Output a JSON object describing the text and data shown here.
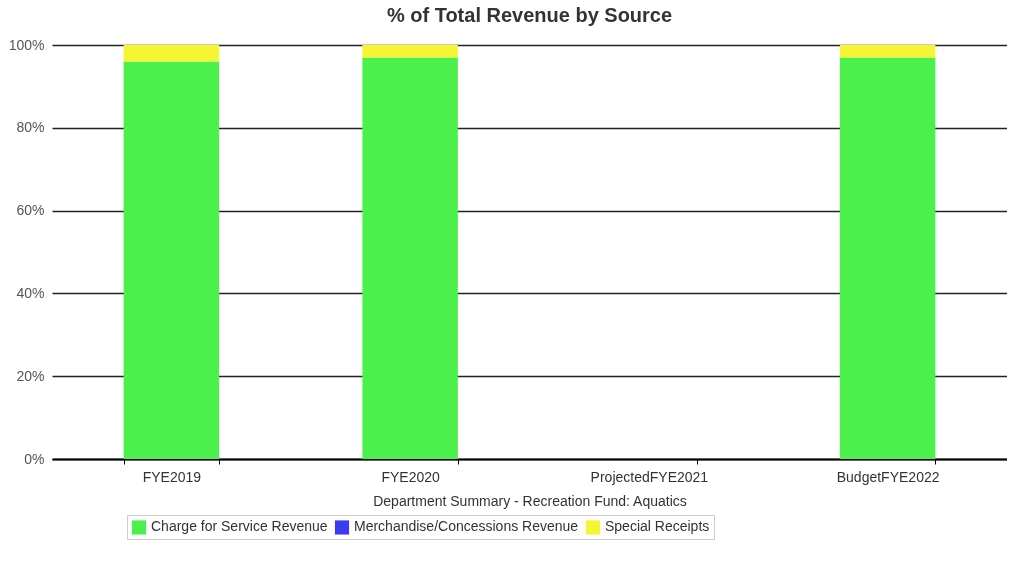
{
  "chart_data": {
    "type": "bar",
    "title": "% of Total Revenue by Source",
    "xlabel": "Department Summary - Recreation Fund: Aquatics",
    "categories": [
      "FYE2019",
      "FYE2020",
      "ProjectedFYE2021",
      "BudgetFYE2022"
    ],
    "stacked": true,
    "series": [
      {
        "name": "Charge for Service Revenue",
        "color": "#4cf04c",
        "values": [
          96,
          97,
          0,
          97
        ]
      },
      {
        "name": "Merchandise/Concessions Revenue",
        "color": "#3b3bf0",
        "values": [
          0,
          0,
          0,
          0
        ]
      },
      {
        "name": "Special Receipts",
        "color": "#f5f532",
        "values": [
          4,
          3,
          0,
          3
        ]
      }
    ],
    "ylim": [
      0,
      100
    ],
    "yticks": [
      {
        "value": 0,
        "label": "0%"
      },
      {
        "value": 20,
        "label": "20%"
      },
      {
        "value": 40,
        "label": "40%"
      },
      {
        "value": 60,
        "label": "60%"
      },
      {
        "value": 80,
        "label": "80%"
      },
      {
        "value": 100,
        "label": "100%"
      }
    ],
    "grid": "y",
    "legend": "bottom"
  }
}
